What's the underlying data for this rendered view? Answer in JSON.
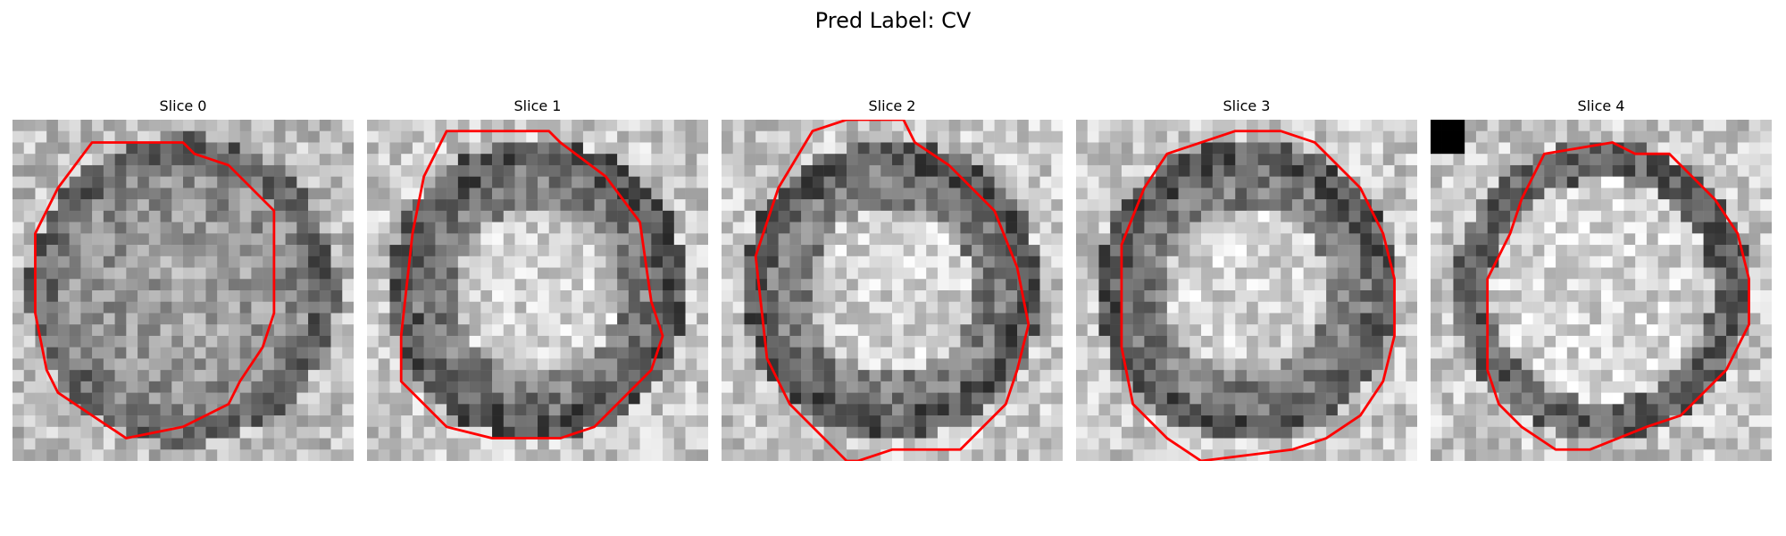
{
  "figure": {
    "title": "Pred Label: CV"
  },
  "panels": [
    {
      "title": "Slice 0",
      "seed": 11,
      "style": "dim"
    },
    {
      "title": "Slice 1",
      "seed": 23,
      "style": "bright-core"
    },
    {
      "title": "Slice 2",
      "seed": 37,
      "style": "bright-core"
    },
    {
      "title": "Slice 3",
      "seed": 51,
      "style": "bright-core"
    },
    {
      "title": "Slice 4",
      "seed": 67,
      "style": "lobed"
    }
  ],
  "colors": {
    "contour": "#ff0000",
    "background": "#ffffff"
  }
}
